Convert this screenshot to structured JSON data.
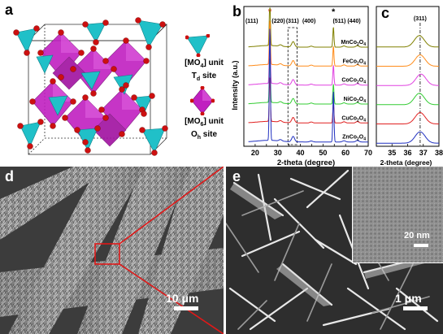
{
  "panels": {
    "a": {
      "letter": "a",
      "legend": [
        {
          "unit": "[MO",
          "sub": "4",
          "rest": "] unit",
          "site": "T",
          "site_sub": "d",
          "site_rest": " site"
        },
        {
          "unit": "[MO",
          "sub": "6",
          "rest": "] unit",
          "site": "O",
          "site_sub": "h",
          "site_rest": " site"
        }
      ]
    },
    "b": {
      "letter": "b"
    },
    "c": {
      "letter": "c"
    },
    "d": {
      "letter": "d",
      "scale": "10 μm"
    },
    "e": {
      "letter": "e",
      "scale": "1 μm",
      "inset_scale": "20 nm"
    }
  },
  "chart_data": [
    {
      "type": "line",
      "panel": "b",
      "xlabel": "2-theta (degree)",
      "ylabel": "Intensity (a.u.)",
      "xlim": [
        15,
        70
      ],
      "xticks": [
        20,
        25,
        30,
        35,
        40,
        45,
        50,
        55,
        60,
        65,
        70
      ],
      "peak_labels": [
        {
          "text": "(111)",
          "x": 18.5
        },
        {
          "text": "(220)",
          "x": 30.3
        },
        {
          "text": "(311)",
          "x": 36.5
        },
        {
          "text": "(400)",
          "x": 43.8
        },
        {
          "text": "(511) (440)",
          "x": 60.5
        }
      ],
      "marker": {
        "text": "*",
        "positions": [
          26.5,
          54.6
        ]
      },
      "series": [
        {
          "name": "MnCo2O4",
          "color": "#808000"
        },
        {
          "name": "FeCo2O4",
          "color": "#ff8c1a"
        },
        {
          "name": "CoCo2O4",
          "color": "#e040e0"
        },
        {
          "name": "NiCo2O4",
          "color": "#33cc33"
        },
        {
          "name": "CuCo2O4",
          "color": "#e02020"
        },
        {
          "name": "ZnCo2O4",
          "color": "#2030c0"
        }
      ],
      "peaks": [
        {
          "x": 26.5,
          "height": 1.0,
          "kind": "substrate"
        },
        {
          "x": 54.6,
          "height": 0.45,
          "kind": "substrate"
        },
        {
          "x": 36.8,
          "height": 0.22,
          "kind": "spinel"
        },
        {
          "x": 31.2,
          "height": 0.06,
          "kind": "spinel"
        },
        {
          "x": 44.8,
          "height": 0.04,
          "kind": "spinel"
        },
        {
          "x": 59.3,
          "height": 0.05,
          "kind": "spinel"
        },
        {
          "x": 65.2,
          "height": 0.06,
          "kind": "spinel"
        }
      ],
      "dash_box": [
        34.5,
        38.5
      ]
    },
    {
      "type": "line",
      "panel": "c",
      "xlabel": "2-theta (degree)",
      "xlim": [
        34,
        38
      ],
      "xticks": [
        34,
        35,
        36,
        37,
        38
      ],
      "peak_labels": [
        {
          "text": "(311)",
          "x": 36.8
        }
      ],
      "reference_line": 36.8,
      "series": [
        {
          "name": "MnCo2O4",
          "color": "#808000",
          "center": 36.75
        },
        {
          "name": "FeCo2O4",
          "color": "#ff8c1a",
          "center": 36.8
        },
        {
          "name": "CoCo2O4",
          "color": "#e040e0",
          "center": 36.85
        },
        {
          "name": "NiCo2O4",
          "color": "#33cc33",
          "center": 36.75
        },
        {
          "name": "CuCo2O4",
          "color": "#e02020",
          "center": 36.8
        },
        {
          "name": "ZnCo2O4",
          "color": "#2030c0",
          "center": 36.8
        }
      ]
    }
  ]
}
